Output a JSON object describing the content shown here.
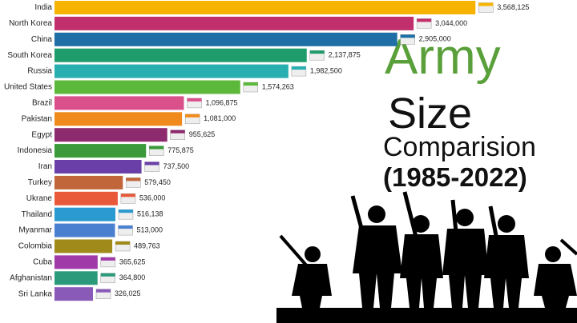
{
  "chart_data": {
    "type": "bar",
    "orientation": "horizontal",
    "title_lines": [
      "Army",
      "Size",
      "Comparision",
      "(1985-2022)"
    ],
    "categories": [
      "India",
      "North Korea",
      "China",
      "South Korea",
      "Russia",
      "United States",
      "Brazil",
      "Pakistan",
      "Egypt",
      "Indonesia",
      "Iran",
      "Turkey",
      "Ukrane",
      "Thailand",
      "Myanmar",
      "Colombia",
      "Cuba",
      "Afghanistan",
      "Sri Lanka"
    ],
    "values": [
      3568125,
      3044000,
      2905000,
      2137875,
      1982500,
      1574263,
      1096875,
      1081000,
      955625,
      775875,
      737500,
      579450,
      536000,
      516138,
      513000,
      489763,
      365625,
      364800,
      326025
    ],
    "value_labels": [
      "3,568,125",
      "3,044,000",
      "2,905,000",
      "2,137,875",
      "1,982,500",
      "1,574,263",
      "1,096,875",
      "1,081,000",
      "955,625",
      "775,875",
      "737,500",
      "579,450",
      "536,000",
      "516,138",
      "513,000",
      "489,763",
      "365,625",
      "364,800",
      "326,025"
    ],
    "colors": [
      "#f6b400",
      "#c1306c",
      "#1f6ea6",
      "#1f9c6c",
      "#2aafb0",
      "#5cb83a",
      "#d9508a",
      "#f08a1c",
      "#8e2a6e",
      "#3a9a3a",
      "#6a3fa8",
      "#c0663a",
      "#e85a3a",
      "#2a9ad0",
      "#4a80d0",
      "#a08a1a",
      "#a03aa8",
      "#2a9a7a",
      "#8a5ab8"
    ],
    "xlim": [
      0,
      3600000
    ]
  }
}
